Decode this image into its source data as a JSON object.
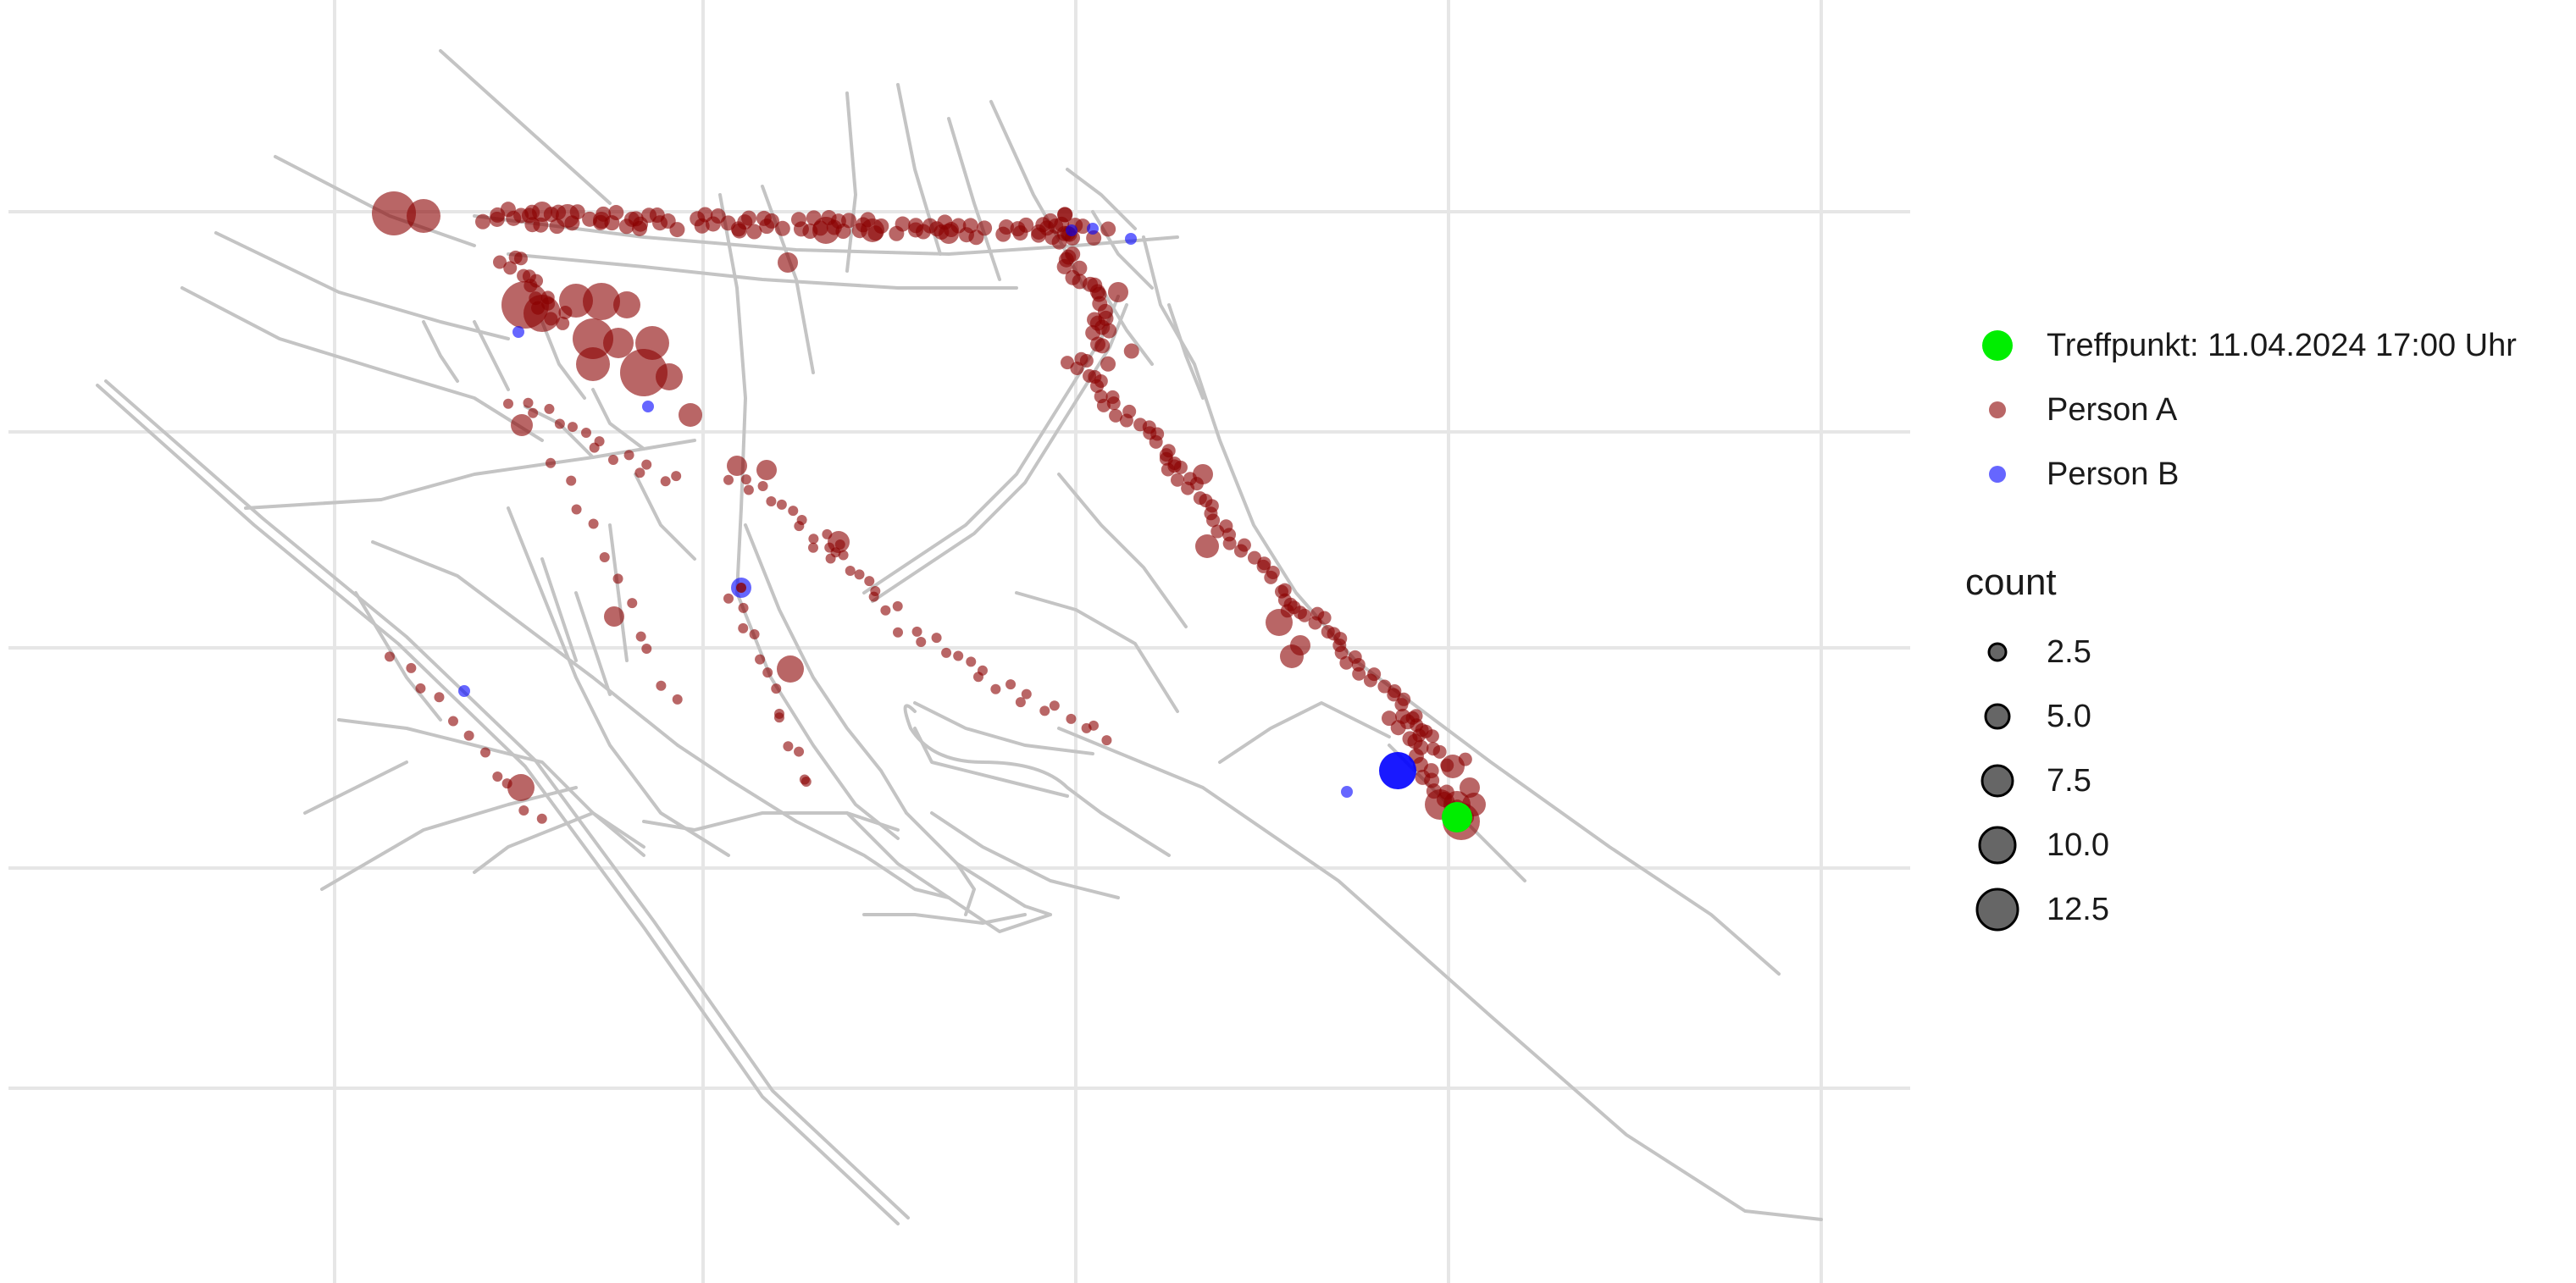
{
  "legend": {
    "colour_items": [
      {
        "label": "Treffpunkt: 11.04.2024 17:00 Uhr",
        "color": "#00ee00"
      },
      {
        "label": "Person A",
        "color": "#8b0000"
      },
      {
        "label": "Person B",
        "color": "#0000ff"
      }
    ],
    "size_title": "count",
    "size_items": [
      "2.5",
      "5.0",
      "7.5",
      "10.0",
      "12.5"
    ]
  },
  "chart_data": {
    "type": "scatter",
    "grid": true,
    "basemap": "street network (grey lines)",
    "series": [
      {
        "name": "Treffpunkt: 11.04.2024 17:00 Uhr",
        "color": "#00ee00",
        "marker": "filled-circle"
      },
      {
        "name": "Person A",
        "color": "#8b0000",
        "marker": "filled-circle",
        "opacity": 0.6
      },
      {
        "name": "Person B",
        "color": "#0000ff",
        "marker": "filled-circle",
        "opacity": 0.6
      }
    ],
    "size_scale": {
      "name": "count",
      "breaks": [
        2.5,
        5.0,
        7.5,
        10.0,
        12.5
      ]
    }
  }
}
